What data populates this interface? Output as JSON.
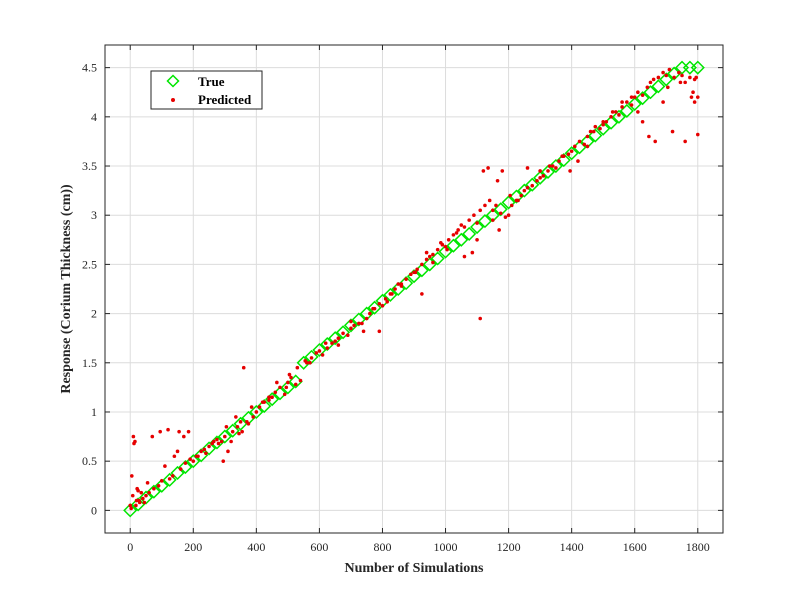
{
  "chart_data": {
    "type": "scatter",
    "title": "",
    "xlabel": "Number of Simulations",
    "ylabel": "Response (Corium Thickness (cm))",
    "xlim": [
      -80,
      1880
    ],
    "ylim": [
      -0.23,
      4.73
    ],
    "xticks": [
      0,
      200,
      400,
      600,
      800,
      1000,
      1200,
      1400,
      1600,
      1800
    ],
    "yticks": [
      0,
      0.5,
      1,
      1.5,
      2,
      2.5,
      3,
      3.5,
      4,
      4.5
    ],
    "xtick_labels": [
      "0",
      "200",
      "400",
      "600",
      "800",
      "1000",
      "1200",
      "1400",
      "1600",
      "1800"
    ],
    "ytick_labels": [
      "0",
      "0.5",
      "1",
      "1.5",
      "2",
      "2.5",
      "3",
      "3.5",
      "4",
      "4.5"
    ],
    "grid": true,
    "legend_position": "top-left",
    "series": [
      {
        "name": "True",
        "marker": "diamond-open",
        "color": "#00e600",
        "x": [
          0,
          25,
          50,
          75,
          100,
          125,
          150,
          175,
          200,
          225,
          250,
          275,
          300,
          325,
          350,
          375,
          400,
          425,
          450,
          475,
          500,
          525,
          550,
          575,
          600,
          625,
          650,
          675,
          700,
          725,
          750,
          775,
          800,
          825,
          850,
          875,
          900,
          925,
          950,
          975,
          1000,
          1025,
          1050,
          1075,
          1100,
          1125,
          1150,
          1175,
          1200,
          1225,
          1250,
          1275,
          1300,
          1325,
          1350,
          1375,
          1400,
          1425,
          1450,
          1475,
          1500,
          1525,
          1550,
          1575,
          1600,
          1625,
          1650,
          1675,
          1700,
          1725,
          1750,
          1775,
          1800
        ],
        "y": [
          0.0,
          0.06,
          0.13,
          0.19,
          0.25,
          0.31,
          0.38,
          0.44,
          0.5,
          0.56,
          0.63,
          0.69,
          0.75,
          0.81,
          0.88,
          0.94,
          1.0,
          1.06,
          1.13,
          1.19,
          1.25,
          1.31,
          1.5,
          1.56,
          1.63,
          1.69,
          1.75,
          1.81,
          1.88,
          1.94,
          2.0,
          2.06,
          2.13,
          2.19,
          2.25,
          2.31,
          2.38,
          2.44,
          2.5,
          2.56,
          2.63,
          2.69,
          2.75,
          2.81,
          2.88,
          2.94,
          3.0,
          3.06,
          3.13,
          3.19,
          3.25,
          3.31,
          3.38,
          3.44,
          3.5,
          3.56,
          3.63,
          3.69,
          3.75,
          3.81,
          3.88,
          3.94,
          4.0,
          4.06,
          4.13,
          4.19,
          4.25,
          4.31,
          4.38,
          4.44,
          4.5,
          4.5,
          4.5
        ]
      },
      {
        "name": "Predicted",
        "marker": "dot",
        "color": "#e60000",
        "x": [
          0,
          5,
          10,
          15,
          20,
          25,
          30,
          40,
          50,
          60,
          75,
          90,
          100,
          110,
          125,
          140,
          150,
          160,
          175,
          190,
          200,
          210,
          225,
          240,
          250,
          260,
          275,
          290,
          300,
          310,
          325,
          340,
          350,
          360,
          375,
          390,
          400,
          410,
          425,
          440,
          450,
          460,
          475,
          490,
          500,
          510,
          525,
          540,
          560,
          575,
          590,
          600,
          610,
          625,
          640,
          650,
          660,
          675,
          690,
          700,
          710,
          725,
          740,
          750,
          760,
          775,
          790,
          800,
          810,
          825,
          840,
          850,
          860,
          875,
          890,
          900,
          910,
          925,
          940,
          950,
          960,
          975,
          990,
          1000,
          1010,
          1025,
          1040,
          1050,
          1060,
          1075,
          1090,
          1100,
          1110,
          1125,
          1140,
          1150,
          1160,
          1175,
          1190,
          1200,
          1210,
          1225,
          1240,
          1250,
          1260,
          1275,
          1290,
          1300,
          1310,
          1325,
          1340,
          1350,
          1360,
          1375,
          1390,
          1400,
          1410,
          1425,
          1440,
          1450,
          1460,
          1475,
          1490,
          1500,
          1510,
          1525,
          1540,
          1550,
          1560,
          1575,
          1590,
          1600,
          1610,
          1625,
          1640,
          1650,
          1660,
          1675,
          1690,
          1700,
          1710,
          1725,
          1740,
          1750,
          1760,
          1775,
          1790,
          1800,
          3,
          8,
          12,
          18,
          22,
          28,
          35,
          45,
          55,
          70,
          95,
          120,
          135,
          155,
          170,
          185,
          215,
          235,
          265,
          280,
          295,
          305,
          320,
          335,
          345,
          355,
          370,
          385,
          420,
          440,
          465,
          495,
          505,
          530,
          555,
          570,
          620,
          660,
          700,
          735,
          770,
          790,
          815,
          830,
          860,
          905,
          925,
          940,
          960,
          985,
          1005,
          1035,
          1060,
          1085,
          1100,
          1110,
          1120,
          1135,
          1150,
          1165,
          1170,
          1180,
          1205,
          1230,
          1260,
          1300,
          1330,
          1370,
          1395,
          1420,
          1450,
          1470,
          1500,
          1530,
          1560,
          1590,
          1610,
          1625,
          1645,
          1665,
          1690,
          1705,
          1720,
          1745,
          1760,
          1780,
          1795,
          1800,
          1790,
          1785
        ],
        "y": [
          0.05,
          0.35,
          0.75,
          0.7,
          0.1,
          0.2,
          0.08,
          0.12,
          0.15,
          0.18,
          0.22,
          0.25,
          0.3,
          0.45,
          0.32,
          0.55,
          0.6,
          0.42,
          0.48,
          0.52,
          0.5,
          0.55,
          0.6,
          0.58,
          0.65,
          0.68,
          0.72,
          0.7,
          0.75,
          0.6,
          0.8,
          0.85,
          0.9,
          1.45,
          0.88,
          0.95,
          1.0,
          1.05,
          1.1,
          1.12,
          1.15,
          1.2,
          1.25,
          1.18,
          1.3,
          1.35,
          1.28,
          1.32,
          1.5,
          1.55,
          1.6,
          1.62,
          1.58,
          1.65,
          1.7,
          1.72,
          1.75,
          1.8,
          1.78,
          1.85,
          1.88,
          1.9,
          1.82,
          1.95,
          2.0,
          2.05,
          2.1,
          2.08,
          2.15,
          2.2,
          2.25,
          2.3,
          2.28,
          2.35,
          2.4,
          2.42,
          2.45,
          2.5,
          2.55,
          2.58,
          2.6,
          2.65,
          2.7,
          2.68,
          2.75,
          2.8,
          2.85,
          2.9,
          2.88,
          2.95,
          3.0,
          2.92,
          3.05,
          3.1,
          3.15,
          3.05,
          3.1,
          3.02,
          2.98,
          3.0,
          3.1,
          3.15,
          3.2,
          3.25,
          3.28,
          3.3,
          3.35,
          3.38,
          3.4,
          3.45,
          3.5,
          3.48,
          3.55,
          3.6,
          3.62,
          3.65,
          3.7,
          3.75,
          3.72,
          3.8,
          3.85,
          3.9,
          3.88,
          3.92,
          3.95,
          4.0,
          4.05,
          4.02,
          4.1,
          4.15,
          4.12,
          4.2,
          4.25,
          4.22,
          4.3,
          4.35,
          4.38,
          4.4,
          4.45,
          4.42,
          4.48,
          4.4,
          4.45,
          4.42,
          4.35,
          4.4,
          4.38,
          4.2,
          0.02,
          0.15,
          0.68,
          0.05,
          0.22,
          0.1,
          0.18,
          0.08,
          0.28,
          0.75,
          0.8,
          0.82,
          0.35,
          0.8,
          0.75,
          0.8,
          0.55,
          0.62,
          0.7,
          0.68,
          0.5,
          0.85,
          0.7,
          0.95,
          0.78,
          0.8,
          0.9,
          1.05,
          1.1,
          1.15,
          1.3,
          1.25,
          1.38,
          1.45,
          1.52,
          1.5,
          1.7,
          1.68,
          1.92,
          1.9,
          2.05,
          1.82,
          2.12,
          2.2,
          2.3,
          2.42,
          2.2,
          2.62,
          2.52,
          2.72,
          2.65,
          2.82,
          2.58,
          2.62,
          2.75,
          1.95,
          3.45,
          3.48,
          2.95,
          3.35,
          2.85,
          3.45,
          3.2,
          3.15,
          3.48,
          3.45,
          3.5,
          3.6,
          3.45,
          3.55,
          3.7,
          3.85,
          3.95,
          4.05,
          4.15,
          4.2,
          4.05,
          3.95,
          3.8,
          3.75,
          4.15,
          4.3,
          3.85,
          4.35,
          3.75,
          4.2,
          4.4,
          3.82,
          4.15,
          4.25
        ]
      }
    ]
  }
}
